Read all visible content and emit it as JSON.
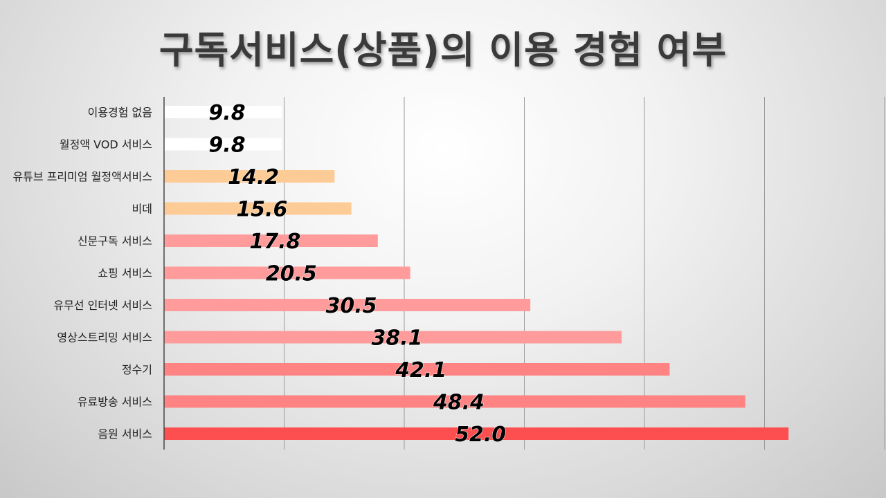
{
  "title": "구독서비스(상품)의 이용 경험 여부",
  "chart_data": {
    "type": "bar",
    "orientation": "horizontal",
    "title": "구독서비스(상품)의 이용 경험 여부",
    "categories": [
      "이용경험 없음",
      "월정액 VOD 서비스",
      "유튜브 프리미엄 월정액서비스",
      "비데",
      "신문구독 서비스",
      "쇼핑 서비스",
      "유무선 인터넷 서비스",
      "영상스트리밍 서비스",
      "정수기",
      "유료방송 서비스",
      "음원 서비스"
    ],
    "values": [
      9.8,
      9.8,
      14.2,
      15.6,
      17.8,
      20.5,
      30.5,
      38.1,
      42.1,
      48.4,
      52.0
    ],
    "value_labels": [
      "9.8",
      "9.8",
      "14.2",
      "15.6",
      "17.8",
      "20.5",
      "30.5",
      "38.1",
      "42.1",
      "48.4",
      "52.0"
    ],
    "bar_colors": [
      "#ffffff",
      "#ffffff",
      "#fdcb95",
      "#fdcb95",
      "#ff9b9b",
      "#ff9b9b",
      "#ff9b9b",
      "#ff9b9b",
      "#ff8383",
      "#ff8383",
      "#fd4f4f"
    ],
    "xlim": [
      0,
      60
    ],
    "grid": true,
    "xlabel": "",
    "ylabel": ""
  }
}
